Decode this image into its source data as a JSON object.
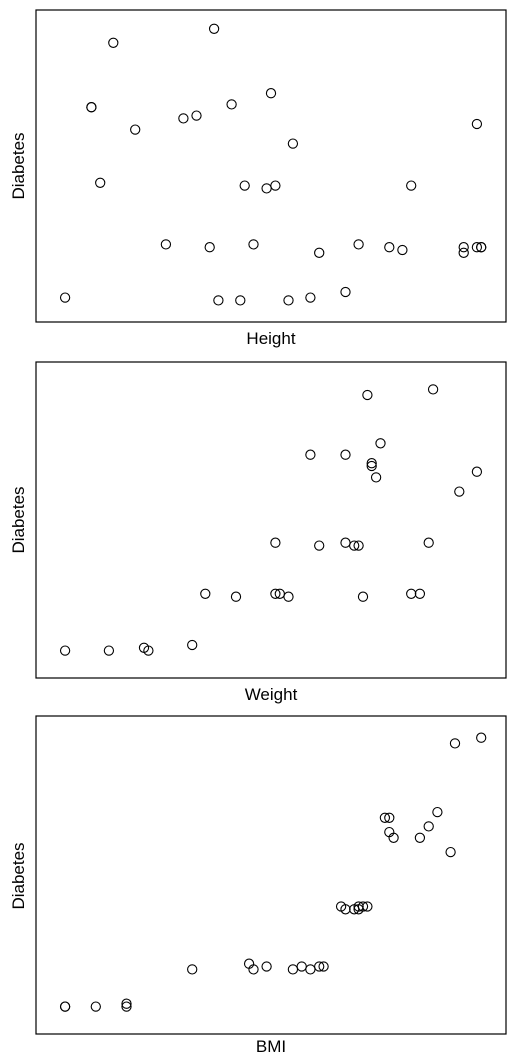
{
  "chart_data": [
    {
      "type": "scatter",
      "xlabel": "Height",
      "ylabel": "Diabetes",
      "xlim": [
        0,
        100
      ],
      "ylim": [
        0,
        100
      ],
      "grid": false,
      "x": [
        3,
        11,
        14,
        9,
        9,
        30,
        19,
        26,
        33,
        36,
        41,
        37,
        46,
        50,
        44,
        38,
        49,
        51,
        43,
        54,
        55,
        59,
        61,
        67,
        70,
        77,
        80,
        82,
        94,
        94,
        97,
        98,
        97,
        98
      ],
      "y": [
        3,
        44,
        94,
        71,
        71,
        67,
        63,
        22,
        68,
        21,
        72,
        99,
        22,
        76,
        43,
        2,
        42,
        43,
        2,
        2,
        58,
        3,
        19,
        5,
        22,
        21,
        20,
        43,
        19,
        21,
        21,
        21,
        65,
        21
      ]
    },
    {
      "type": "scatter",
      "xlabel": "Weight",
      "ylabel": "Diabetes",
      "xlim": [
        0,
        100
      ],
      "ylim": [
        0,
        100
      ],
      "grid": false,
      "x": [
        3,
        13,
        21,
        22,
        32,
        35,
        42,
        51,
        51,
        52,
        54,
        59,
        61,
        67,
        67,
        69,
        70,
        71,
        72,
        73,
        73,
        74,
        75,
        82,
        84,
        87,
        93
      ],
      "y": [
        4,
        4,
        5,
        4,
        6,
        24,
        23,
        42,
        24,
        24,
        23,
        73,
        41,
        73,
        42,
        41,
        41,
        23,
        94,
        69,
        70,
        65,
        77,
        24,
        24,
        96,
        60
      ],
      "extra_x": [
        86,
        97
      ],
      "extra_y": [
        42,
        67
      ]
    },
    {
      "type": "scatter",
      "xlabel": "BMI",
      "ylabel": "Diabetes",
      "xlim": [
        0,
        100
      ],
      "ylim": [
        0,
        100
      ],
      "grid": false,
      "x": [
        3,
        3,
        10,
        17,
        17,
        32,
        45,
        46,
        49,
        55,
        57,
        59,
        61,
        62,
        66,
        67,
        69,
        70,
        70,
        71,
        72,
        76,
        77,
        77,
        78,
        84,
        86,
        88,
        91,
        92,
        98
      ],
      "y": [
        4,
        4,
        4,
        4,
        5,
        17,
        19,
        17,
        18,
        17,
        18,
        17,
        18,
        18,
        39,
        38,
        38,
        39,
        38,
        39,
        39,
        70,
        65,
        70,
        63,
        63,
        67,
        72,
        58,
        96,
        98
      ]
    }
  ]
}
